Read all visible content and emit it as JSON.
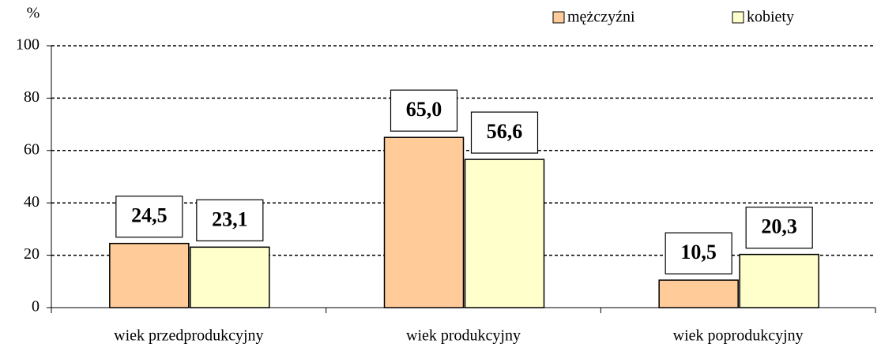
{
  "chart_data": {
    "type": "bar",
    "y_label": "%",
    "categories": [
      "wiek przedprodukcyjny",
      "wiek produkcyjny",
      "wiek poprodukcyjny"
    ],
    "series": [
      {
        "name": "mężczyźni",
        "color": "#ffcc99",
        "values": [
          24.5,
          65.0,
          10.5
        ],
        "value_labels": [
          "24,5",
          "65,0",
          "10,5"
        ]
      },
      {
        "name": "kobiety",
        "color": "#ffffcc",
        "values": [
          23.1,
          56.6,
          20.3
        ],
        "value_labels": [
          "23,1",
          "56,6",
          "20,3"
        ]
      }
    ],
    "ylim": [
      0,
      100
    ],
    "yticks": [
      0,
      20,
      40,
      60,
      80,
      100
    ],
    "grid": true,
    "legend": "top-right"
  }
}
